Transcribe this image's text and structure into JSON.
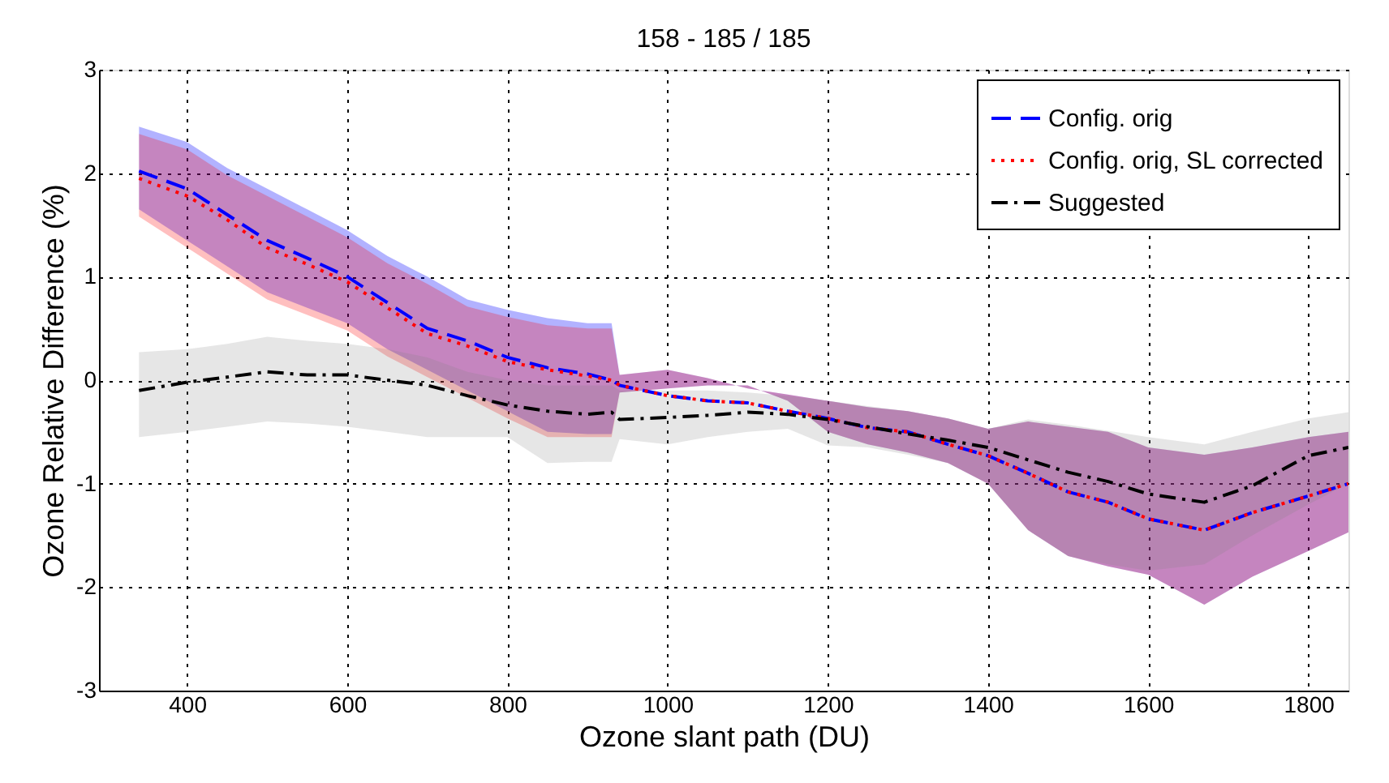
{
  "chart_data": {
    "type": "line",
    "title": "158 - 185 / 185",
    "xlabel": "Ozone slant path (DU)",
    "ylabel": "Ozone Relative Difference (%)",
    "x": [
      340,
      400,
      450,
      500,
      550,
      600,
      650,
      700,
      750,
      800,
      850,
      900,
      930,
      940,
      1000,
      1050,
      1100,
      1150,
      1200,
      1250,
      1300,
      1350,
      1400,
      1450,
      1500,
      1550,
      1600,
      1670,
      1730,
      1800,
      1850
    ],
    "series": [
      {
        "name": "Config. orig",
        "color": "#0000ff",
        "line_style": "dashed",
        "values": [
          2.02,
          1.85,
          1.6,
          1.35,
          1.18,
          1.0,
          0.75,
          0.5,
          0.38,
          0.22,
          0.12,
          0.06,
          0.0,
          -0.05,
          -0.15,
          -0.2,
          -0.22,
          -0.3,
          -0.37,
          -0.46,
          -0.5,
          -0.62,
          -0.73,
          -0.9,
          -1.08,
          -1.18,
          -1.34,
          -1.45,
          -1.28,
          -1.12,
          -1.0
        ],
        "upper": [
          2.45,
          2.3,
          2.05,
          1.85,
          1.65,
          1.45,
          1.2,
          1.0,
          0.78,
          0.68,
          0.6,
          0.55,
          0.55,
          0.05,
          0.1,
          0.02,
          -0.08,
          -0.14,
          -0.2,
          -0.26,
          -0.3,
          -0.37,
          -0.47,
          -0.4,
          -0.45,
          -0.5,
          -0.65,
          -0.72,
          -0.65,
          -0.55,
          -0.5
        ],
        "lower": [
          1.65,
          1.35,
          1.1,
          0.85,
          0.7,
          0.55,
          0.3,
          0.1,
          -0.1,
          -0.3,
          -0.5,
          -0.52,
          -0.52,
          -0.12,
          -0.08,
          -0.05,
          -0.05,
          -0.2,
          -0.5,
          -0.62,
          -0.7,
          -0.8,
          -1.0,
          -1.45,
          -1.7,
          -1.8,
          -1.88,
          -2.17,
          -1.9,
          -1.65,
          -1.47
        ]
      },
      {
        "name": "Config. orig, SL corrected",
        "color": "#ff0000",
        "line_style": "dotted",
        "values": [
          1.95,
          1.78,
          1.55,
          1.28,
          1.12,
          0.95,
          0.7,
          0.45,
          0.33,
          0.18,
          0.1,
          0.04,
          0.0,
          -0.05,
          -0.15,
          -0.2,
          -0.22,
          -0.3,
          -0.37,
          -0.46,
          -0.5,
          -0.62,
          -0.73,
          -0.9,
          -1.08,
          -1.18,
          -1.34,
          -1.45,
          -1.28,
          -1.12,
          -1.0
        ],
        "upper": [
          2.38,
          2.23,
          1.98,
          1.78,
          1.58,
          1.38,
          1.13,
          0.93,
          0.71,
          0.61,
          0.53,
          0.5,
          0.5,
          0.05,
          0.1,
          0.02,
          -0.08,
          -0.14,
          -0.2,
          -0.26,
          -0.3,
          -0.37,
          -0.47,
          -0.4,
          -0.45,
          -0.5,
          -0.65,
          -0.72,
          -0.65,
          -0.55,
          -0.5
        ],
        "lower": [
          1.58,
          1.28,
          1.03,
          0.78,
          0.63,
          0.48,
          0.23,
          0.03,
          -0.17,
          -0.37,
          -0.55,
          -0.55,
          -0.55,
          -0.12,
          -0.08,
          -0.05,
          -0.05,
          -0.2,
          -0.5,
          -0.62,
          -0.7,
          -0.8,
          -1.0,
          -1.45,
          -1.7,
          -1.8,
          -1.88,
          -2.17,
          -1.9,
          -1.65,
          -1.47
        ]
      },
      {
        "name": "Suggested",
        "color": "#000000",
        "line_style": "dashdot",
        "values": [
          -0.1,
          -0.02,
          0.03,
          0.08,
          0.05,
          0.05,
          0.0,
          -0.05,
          -0.15,
          -0.24,
          -0.3,
          -0.33,
          -0.31,
          -0.38,
          -0.36,
          -0.34,
          -0.31,
          -0.33,
          -0.38,
          -0.45,
          -0.52,
          -0.58,
          -0.65,
          -0.77,
          -0.89,
          -0.98,
          -1.1,
          -1.18,
          -1.02,
          -0.73,
          -0.65
        ],
        "upper": [
          0.27,
          0.3,
          0.35,
          0.42,
          0.38,
          0.35,
          0.3,
          0.22,
          0.08,
          0.0,
          -0.05,
          -0.05,
          -0.05,
          -0.1,
          -0.1,
          -0.1,
          -0.12,
          -0.15,
          -0.2,
          -0.25,
          -0.3,
          -0.37,
          -0.47,
          -0.38,
          -0.43,
          -0.49,
          -0.55,
          -0.62,
          -0.5,
          -0.37,
          -0.31
        ],
        "lower": [
          -0.55,
          -0.5,
          -0.45,
          -0.4,
          -0.42,
          -0.45,
          -0.5,
          -0.55,
          -0.55,
          -0.55,
          -0.8,
          -0.79,
          -0.79,
          -0.57,
          -0.62,
          -0.55,
          -0.5,
          -0.47,
          -0.63,
          -0.65,
          -0.72,
          -0.8,
          -1.0,
          -1.45,
          -1.7,
          -1.78,
          -1.84,
          -1.78,
          -1.5,
          -1.2,
          -1.0
        ]
      }
    ],
    "xlim": [
      290,
      1850
    ],
    "xticks": [
      400,
      600,
      800,
      1000,
      1200,
      1400,
      1600,
      1800
    ],
    "ylim": [
      -3,
      3
    ],
    "yticks": [
      -3,
      -2,
      -1,
      0,
      1,
      2,
      3
    ],
    "grid": true,
    "legend": "top right"
  }
}
